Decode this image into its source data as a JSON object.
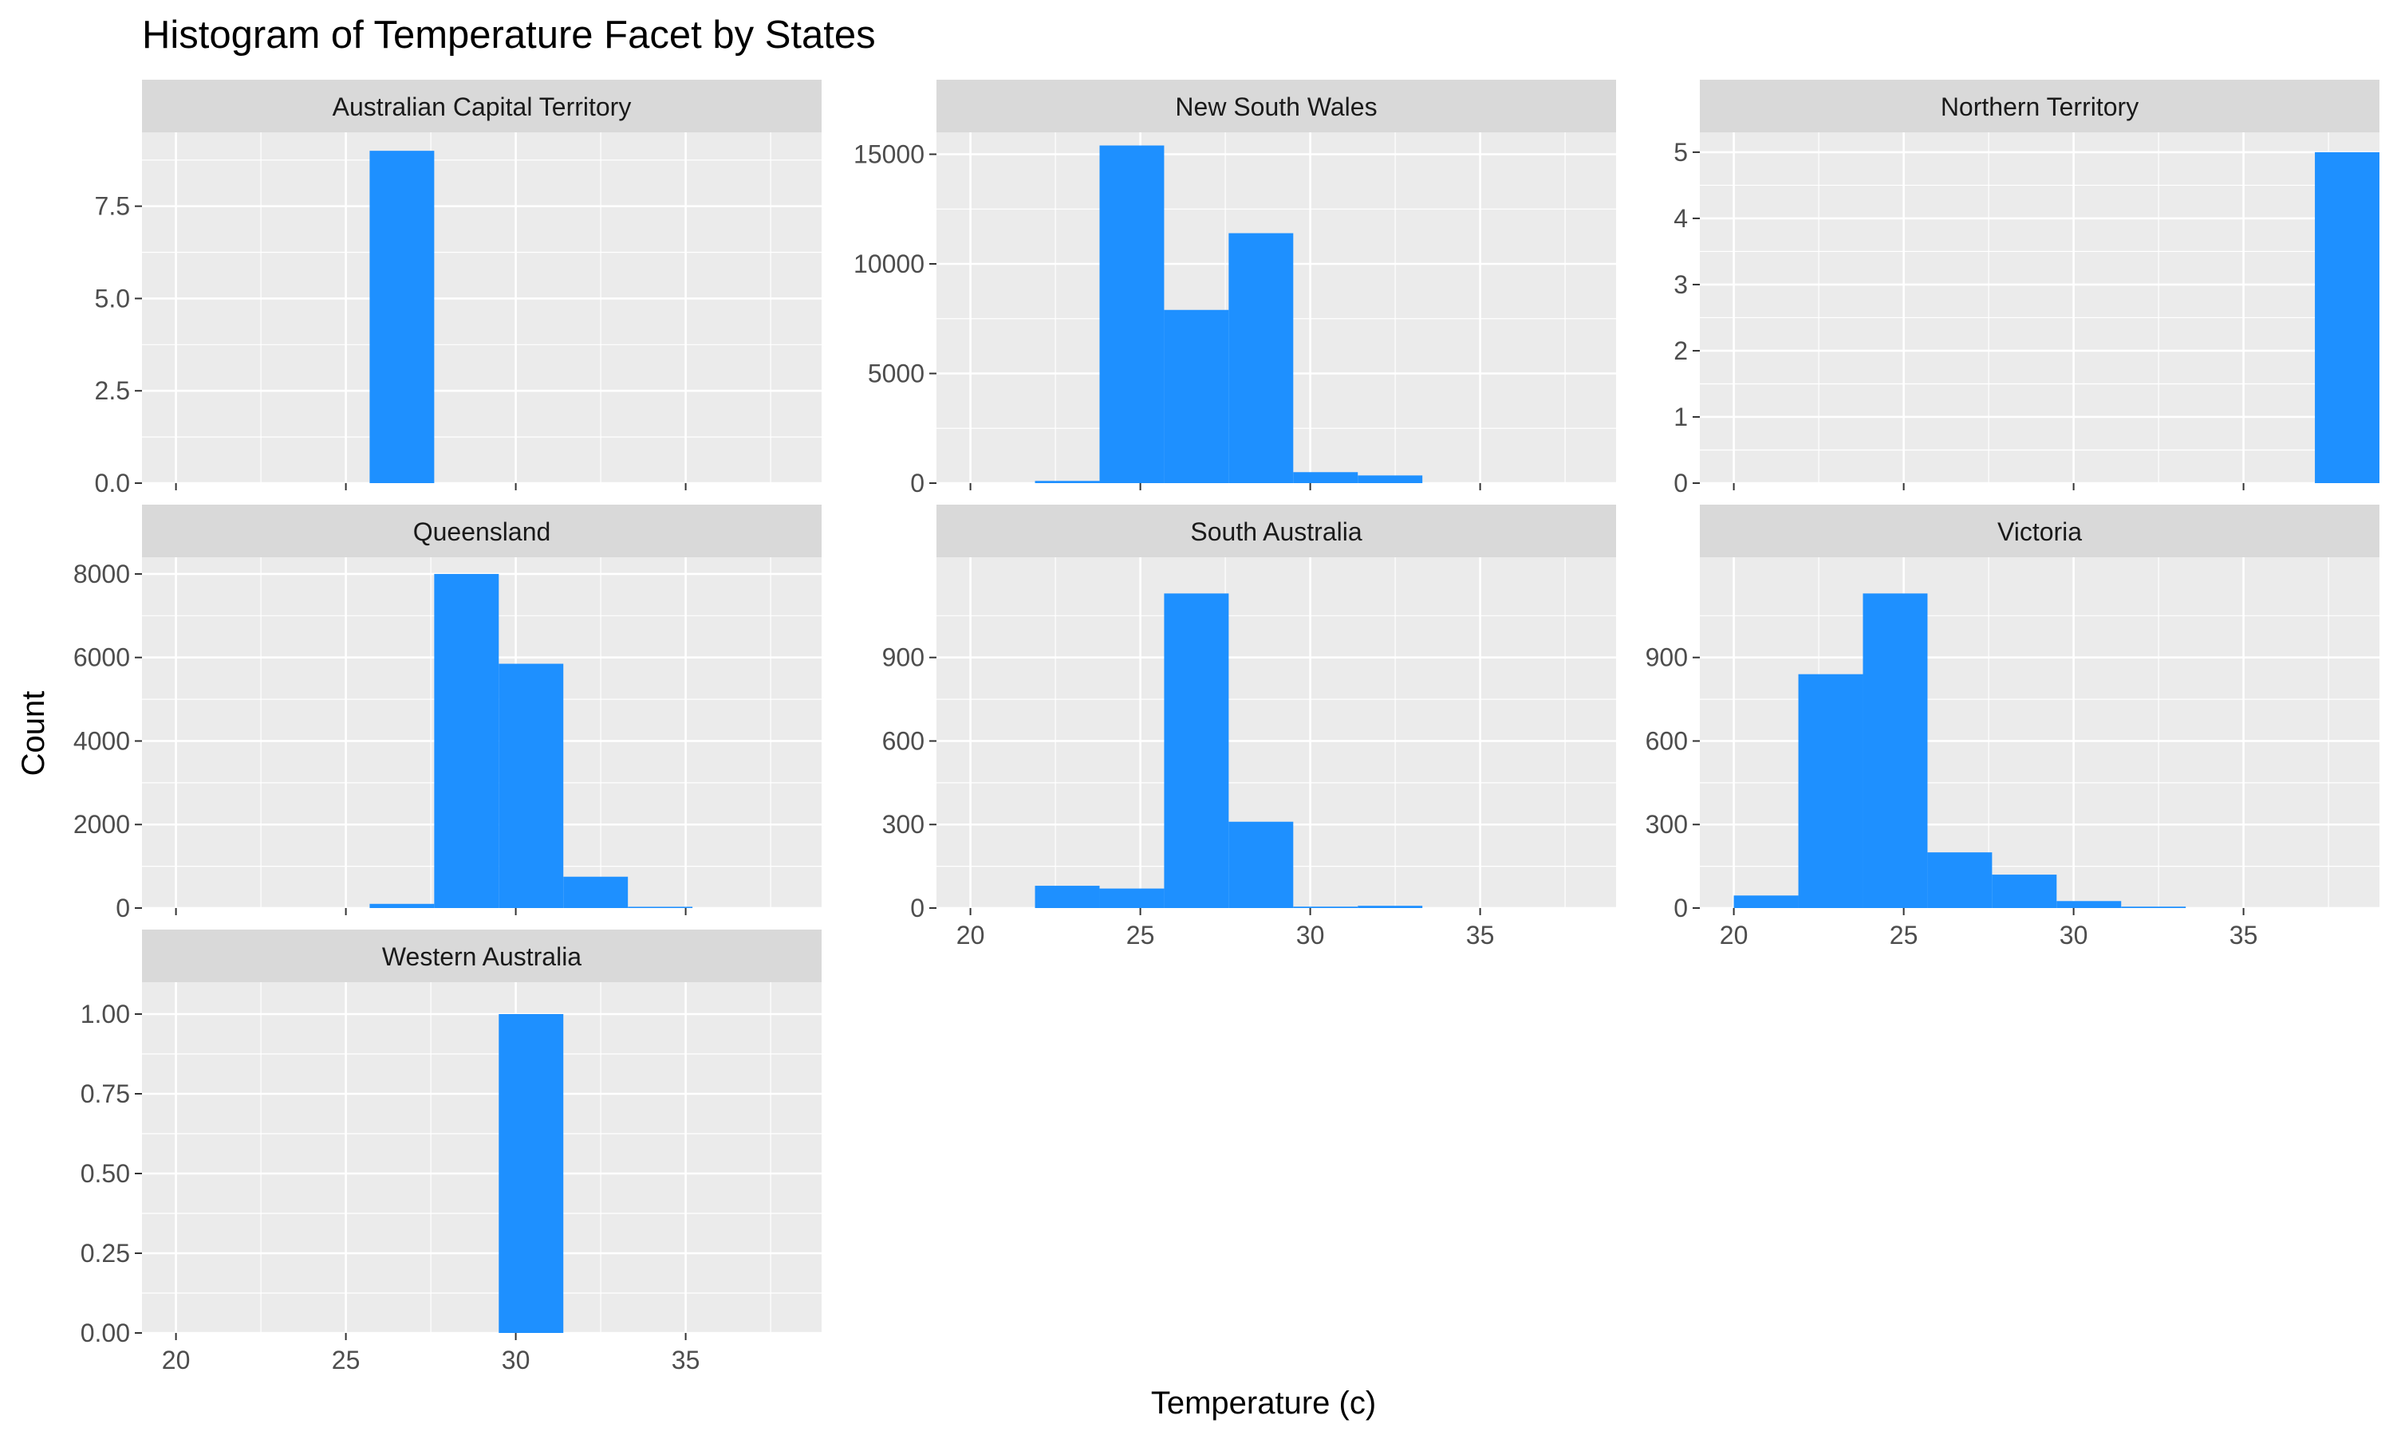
{
  "chart_data": {
    "type": "bar",
    "title": "Histogram of Temperature Facet by States",
    "xlabel": "Temperature (c)",
    "ylabel": "Count",
    "xlim": [
      19,
      39
    ],
    "x_ticks": [
      "20",
      "25",
      "30",
      "35"
    ],
    "grid": true,
    "bin_width": 1.9,
    "colors": {
      "bar": "#1E90FF",
      "panel": "#EBEBEB",
      "strip": "#D9D9D9",
      "grid": "#FFFFFF"
    },
    "facets": [
      {
        "name": "Australian Capital Territory",
        "ylim": [
          0,
          9.5
        ],
        "y_ticks": [
          {
            "value": 0,
            "label": "0.0"
          },
          {
            "value": 2.5,
            "label": "2.5"
          },
          {
            "value": 5,
            "label": "5.0"
          },
          {
            "value": 7.5,
            "label": "7.5"
          }
        ],
        "bins": [
          {
            "x0": 25.7,
            "x1": 27.6,
            "count": 9
          }
        ]
      },
      {
        "name": "New South Wales",
        "ylim": [
          0,
          16000
        ],
        "y_ticks": [
          {
            "value": 0,
            "label": "0"
          },
          {
            "value": 5000,
            "label": "5000"
          },
          {
            "value": 10000,
            "label": "10000"
          },
          {
            "value": 15000,
            "label": "15000"
          }
        ],
        "bins": [
          {
            "x0": 21.9,
            "x1": 23.8,
            "count": 100
          },
          {
            "x0": 23.8,
            "x1": 25.7,
            "count": 15400
          },
          {
            "x0": 25.7,
            "x1": 27.6,
            "count": 7900
          },
          {
            "x0": 27.6,
            "x1": 29.5,
            "count": 11400
          },
          {
            "x0": 29.5,
            "x1": 31.4,
            "count": 500
          },
          {
            "x0": 31.4,
            "x1": 33.3,
            "count": 350
          }
        ]
      },
      {
        "name": "Northern Territory",
        "ylim": [
          0,
          5.3
        ],
        "y_ticks": [
          {
            "value": 0,
            "label": "0"
          },
          {
            "value": 1,
            "label": "1"
          },
          {
            "value": 2,
            "label": "2"
          },
          {
            "value": 3,
            "label": "3"
          },
          {
            "value": 4,
            "label": "4"
          },
          {
            "value": 5,
            "label": "5"
          }
        ],
        "bins": [
          {
            "x0": 37.1,
            "x1": 39.0,
            "count": 5
          }
        ]
      },
      {
        "name": "Queensland",
        "ylim": [
          0,
          8400
        ],
        "y_ticks": [
          {
            "value": 0,
            "label": "0"
          },
          {
            "value": 2000,
            "label": "2000"
          },
          {
            "value": 4000,
            "label": "4000"
          },
          {
            "value": 6000,
            "label": "6000"
          },
          {
            "value": 8000,
            "label": "8000"
          }
        ],
        "bins": [
          {
            "x0": 25.7,
            "x1": 27.6,
            "count": 100
          },
          {
            "x0": 27.6,
            "x1": 29.5,
            "count": 8000
          },
          {
            "x0": 29.5,
            "x1": 31.4,
            "count": 5850
          },
          {
            "x0": 31.4,
            "x1": 33.3,
            "count": 750
          },
          {
            "x0": 33.3,
            "x1": 35.2,
            "count": 30
          }
        ]
      },
      {
        "name": "South Australia",
        "ylim": [
          0,
          1260
        ],
        "y_ticks": [
          {
            "value": 0,
            "label": "0"
          },
          {
            "value": 300,
            "label": "300"
          },
          {
            "value": 600,
            "label": "600"
          },
          {
            "value": 900,
            "label": "900"
          }
        ],
        "bins": [
          {
            "x0": 21.9,
            "x1": 23.8,
            "count": 80
          },
          {
            "x0": 23.8,
            "x1": 25.7,
            "count": 70
          },
          {
            "x0": 25.7,
            "x1": 27.6,
            "count": 1130
          },
          {
            "x0": 27.6,
            "x1": 29.5,
            "count": 310
          },
          {
            "x0": 29.5,
            "x1": 31.4,
            "count": 5
          },
          {
            "x0": 31.4,
            "x1": 33.3,
            "count": 8
          }
        ]
      },
      {
        "name": "Victoria",
        "ylim": [
          0,
          1260
        ],
        "y_ticks": [
          {
            "value": 0,
            "label": "0"
          },
          {
            "value": 300,
            "label": "300"
          },
          {
            "value": 600,
            "label": "600"
          },
          {
            "value": 900,
            "label": "900"
          }
        ],
        "bins": [
          {
            "x0": 20.0,
            "x1": 21.9,
            "count": 45
          },
          {
            "x0": 21.9,
            "x1": 23.8,
            "count": 840
          },
          {
            "x0": 23.8,
            "x1": 25.7,
            "count": 1130
          },
          {
            "x0": 25.7,
            "x1": 27.6,
            "count": 200
          },
          {
            "x0": 27.6,
            "x1": 29.5,
            "count": 120
          },
          {
            "x0": 29.5,
            "x1": 31.4,
            "count": 25
          },
          {
            "x0": 31.4,
            "x1": 33.3,
            "count": 5
          }
        ]
      },
      {
        "name": "Western Australia",
        "ylim": [
          0,
          1.1
        ],
        "y_ticks": [
          {
            "value": 0,
            "label": "0.00"
          },
          {
            "value": 0.25,
            "label": "0.25"
          },
          {
            "value": 0.5,
            "label": "0.50"
          },
          {
            "value": 0.75,
            "label": "0.75"
          },
          {
            "value": 1.0,
            "label": "1.00"
          }
        ],
        "bins": [
          {
            "x0": 29.5,
            "x1": 31.4,
            "count": 1
          }
        ]
      }
    ]
  }
}
